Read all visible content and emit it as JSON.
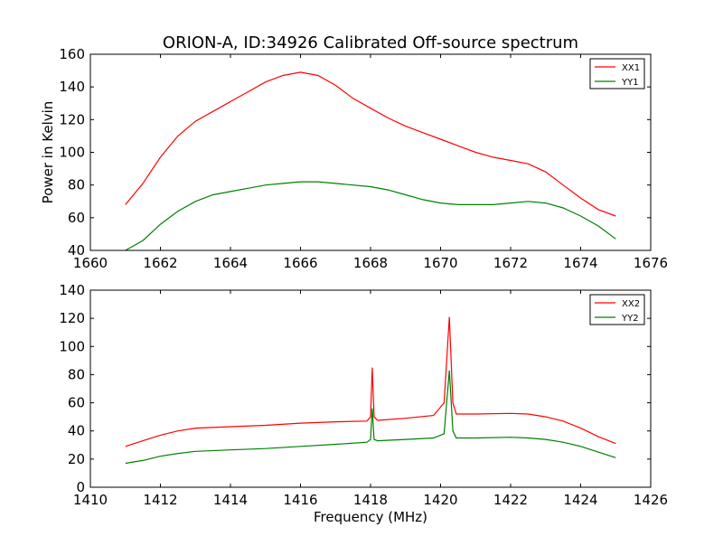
{
  "title": "ORION-A, ID:34926 Calibrated Off-source spectrum",
  "colors": {
    "xx": "#ff0000",
    "yy": "#008000"
  },
  "chart_data": [
    {
      "type": "line",
      "xlabel": "",
      "ylabel": "Power in Kelvin",
      "xlim": [
        1660,
        1676
      ],
      "ylim": [
        40,
        160
      ],
      "xticks": [
        1660,
        1662,
        1664,
        1666,
        1668,
        1670,
        1672,
        1674,
        1676
      ],
      "yticks": [
        40,
        60,
        80,
        100,
        120,
        140,
        160
      ],
      "legend": "top-right",
      "grid": false,
      "series": [
        {
          "name": "XX1",
          "color": "#ff0000",
          "x": [
            1661.0,
            1661.5,
            1662.0,
            1662.5,
            1663.0,
            1663.5,
            1664.0,
            1664.5,
            1665.0,
            1665.5,
            1666.0,
            1666.5,
            1667.0,
            1667.5,
            1668.0,
            1668.5,
            1669.0,
            1669.5,
            1670.0,
            1670.5,
            1671.0,
            1671.5,
            1672.0,
            1672.5,
            1673.0,
            1673.5,
            1674.0,
            1674.5,
            1675.0
          ],
          "y": [
            68,
            81,
            97,
            110,
            119,
            125,
            131,
            137,
            143,
            147,
            149,
            147,
            141,
            133,
            127,
            121,
            116,
            112,
            108,
            104,
            100,
            97,
            95,
            93,
            88,
            80,
            72,
            65,
            61
          ]
        },
        {
          "name": "YY1",
          "color": "#008000",
          "x": [
            1661.0,
            1661.5,
            1662.0,
            1662.5,
            1663.0,
            1663.5,
            1664.0,
            1664.5,
            1665.0,
            1665.5,
            1666.0,
            1666.5,
            1667.0,
            1667.5,
            1668.0,
            1668.5,
            1669.0,
            1669.5,
            1670.0,
            1670.5,
            1671.0,
            1671.5,
            1672.0,
            1672.5,
            1673.0,
            1673.5,
            1674.0,
            1674.5,
            1675.0
          ],
          "y": [
            40,
            46,
            56,
            64,
            70,
            74,
            76,
            78,
            80,
            81,
            82,
            82,
            81,
            80,
            79,
            77,
            74,
            71,
            69,
            68,
            68,
            68,
            69,
            70,
            69,
            66,
            61,
            55,
            47
          ]
        }
      ]
    },
    {
      "type": "line",
      "xlabel": "Frequency (MHz)",
      "ylabel": "",
      "xlim": [
        1410,
        1426
      ],
      "ylim": [
        0,
        140
      ],
      "xticks": [
        1410,
        1412,
        1414,
        1416,
        1418,
        1420,
        1422,
        1424,
        1426
      ],
      "yticks": [
        0,
        20,
        40,
        60,
        80,
        100,
        120,
        140
      ],
      "legend": "top-right",
      "grid": false,
      "series": [
        {
          "name": "XX2",
          "color": "#ff0000",
          "x": [
            1411.0,
            1411.5,
            1412.0,
            1412.5,
            1413.0,
            1414.0,
            1415.0,
            1416.0,
            1417.0,
            1417.9,
            1418.0,
            1418.05,
            1418.1,
            1418.2,
            1419.0,
            1419.8,
            1420.1,
            1420.25,
            1420.35,
            1420.45,
            1420.6,
            1421.0,
            1422.0,
            1422.5,
            1423.0,
            1423.5,
            1424.0,
            1424.5,
            1425.0
          ],
          "y": [
            29,
            33,
            37,
            40,
            42,
            43,
            44,
            45.5,
            46.5,
            47,
            50,
            85,
            50,
            47.5,
            49,
            51,
            60,
            121,
            60,
            52,
            52,
            52,
            52.5,
            52,
            50,
            47,
            42,
            36,
            31
          ]
        },
        {
          "name": "YY2",
          "color": "#008000",
          "x": [
            1411.0,
            1411.5,
            1412.0,
            1412.5,
            1413.0,
            1414.0,
            1415.0,
            1416.0,
            1417.0,
            1417.9,
            1418.0,
            1418.05,
            1418.1,
            1418.2,
            1419.0,
            1419.8,
            1420.1,
            1420.25,
            1420.35,
            1420.45,
            1420.6,
            1421.0,
            1422.0,
            1422.5,
            1423.0,
            1423.5,
            1424.0,
            1424.5,
            1425.0
          ],
          "y": [
            17,
            19,
            22,
            24,
            25.5,
            26.5,
            27.5,
            29,
            30.5,
            32,
            34,
            56,
            34,
            33,
            34,
            35,
            38,
            83,
            40,
            35,
            35,
            35,
            35.5,
            35,
            34,
            32,
            29,
            25,
            21
          ]
        }
      ]
    }
  ]
}
